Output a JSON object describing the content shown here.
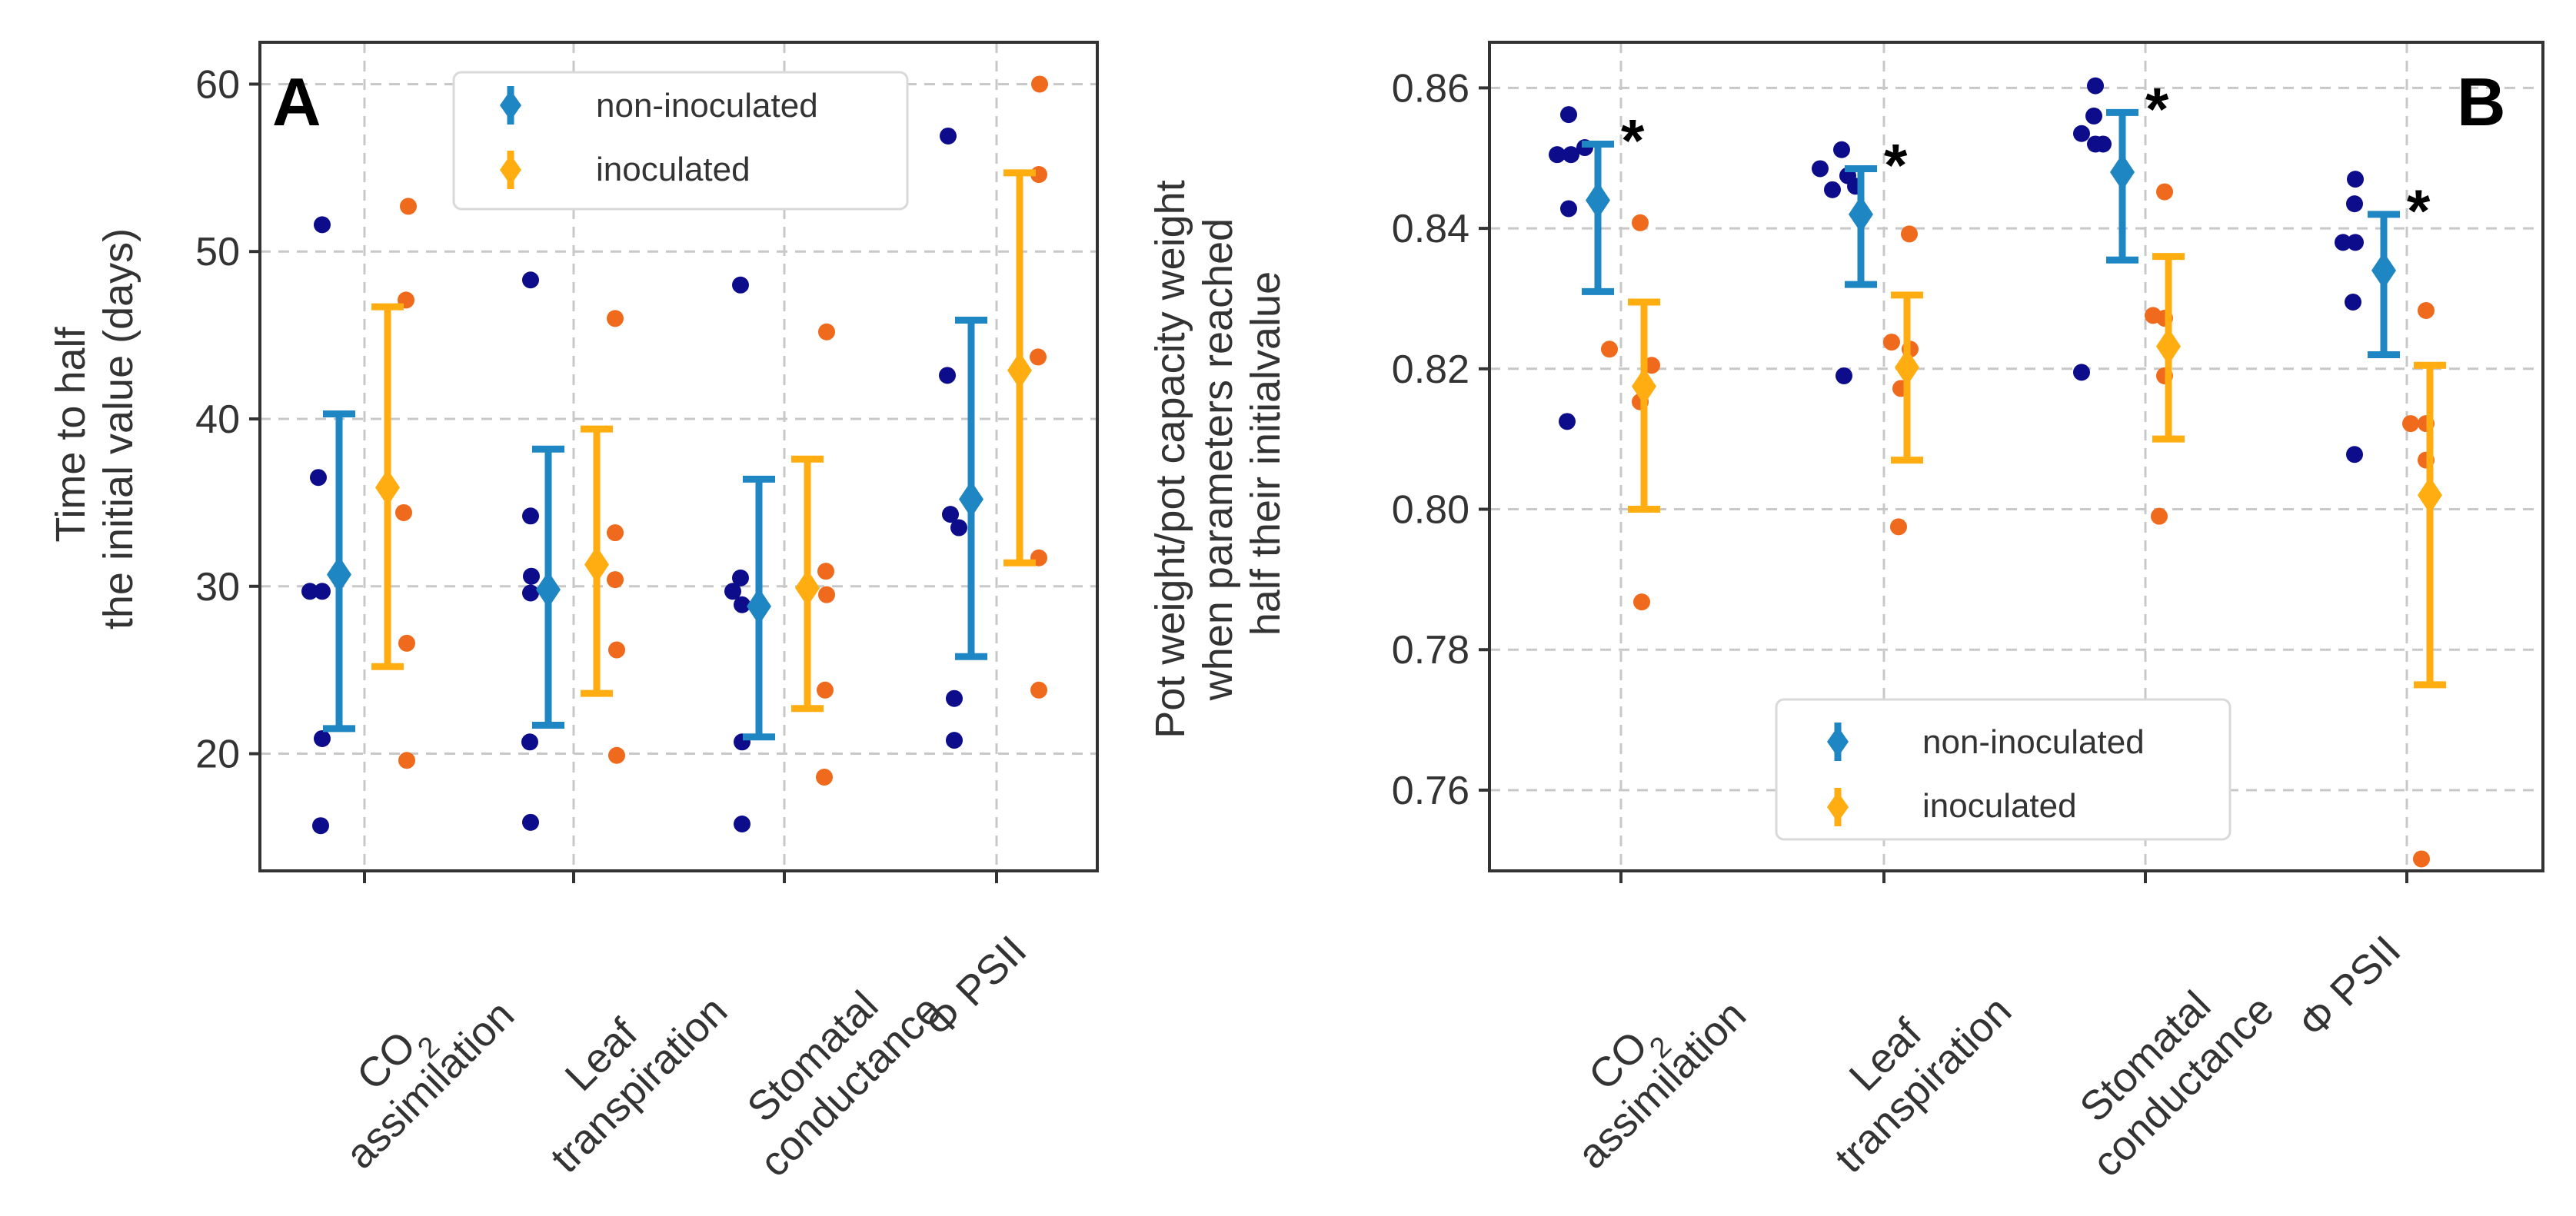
{
  "colors": {
    "non_mean": "#1f86c4",
    "ino_mean": "#ffad10",
    "non_points": "#0d0d8c",
    "ino_points": "#ef6a1c",
    "grid": "#c8c8c8",
    "frame": "#333333"
  },
  "chart_data": [
    {
      "panel": "A",
      "type": "scatter",
      "ylabel_lines": [
        "Time to half",
        "the initial value (days)"
      ],
      "ylim": [
        13,
        62.5
      ],
      "yticks": [
        20,
        30,
        40,
        50,
        60
      ],
      "ytick_labels": [
        "20",
        "30",
        "40",
        "50",
        "60"
      ],
      "categories": [
        {
          "main": "CO",
          "sub": "2",
          "line2": "assimilation"
        },
        {
          "main": "Leaf",
          "sub": "",
          "line2": "transpiration"
        },
        {
          "main": "Stomatal",
          "sub": "",
          "line2": "conductance"
        },
        {
          "main": "Φ PSII",
          "sub": "",
          "line2": ""
        }
      ],
      "legend": {
        "position": "top-center",
        "entries": [
          "non-inoculated",
          "inoculated"
        ]
      },
      "significance": [
        false,
        false,
        false,
        false
      ],
      "series": [
        {
          "name": "non-inoculated",
          "means": [
            30.7,
            29.8,
            28.8,
            35.2
          ],
          "lower": [
            21.5,
            21.7,
            21.0,
            25.8
          ],
          "upper": [
            40.3,
            38.2,
            36.4,
            45.9
          ],
          "points": [
            [
              15.7,
              20.9,
              29.7,
              29.7,
              36.5,
              51.6
            ],
            [
              15.9,
              20.7,
              29.6,
              30.6,
              34.2,
              48.3
            ],
            [
              15.8,
              20.7,
              28.9,
              29.7,
              30.5,
              48.0
            ],
            [
              20.8,
              23.3,
              33.5,
              34.3,
              42.6,
              56.9
            ]
          ]
        },
        {
          "name": "inoculated",
          "means": [
            35.9,
            31.3,
            29.9,
            42.9
          ],
          "lower": [
            25.2,
            23.6,
            22.7,
            31.4
          ],
          "upper": [
            46.7,
            39.4,
            37.6,
            54.7
          ],
          "points": [
            [
              19.6,
              26.6,
              34.4,
              47.1,
              52.7
            ],
            [
              19.9,
              26.2,
              30.4,
              33.2,
              46.0
            ],
            [
              18.6,
              23.8,
              29.5,
              30.9,
              45.2
            ],
            [
              23.8,
              31.7,
              43.7,
              54.6,
              60.0
            ]
          ]
        }
      ]
    },
    {
      "panel": "B",
      "type": "scatter",
      "ylabel_lines": [
        "Pot weight/pot capacity weight",
        "when parameters reached",
        "half their initialvalue"
      ],
      "ylim": [
        0.7485,
        0.8665
      ],
      "yticks": [
        0.76,
        0.78,
        0.8,
        0.82,
        0.84,
        0.86
      ],
      "ytick_labels": [
        "0.76",
        "0.78",
        "0.80",
        "0.82",
        "0.84",
        "0.86"
      ],
      "categories": [
        {
          "main": "CO",
          "sub": "2",
          "line2": "assimilation"
        },
        {
          "main": "Leaf",
          "sub": "",
          "line2": "transpiration"
        },
        {
          "main": "Stomatal",
          "sub": "",
          "line2": "conductance"
        },
        {
          "main": "Φ PSII",
          "sub": "",
          "line2": ""
        }
      ],
      "legend": {
        "position": "bottom-center",
        "entries": [
          "non-inoculated",
          "inoculated"
        ]
      },
      "significance": [
        true,
        true,
        true,
        true
      ],
      "significance_label": "*",
      "series": [
        {
          "name": "non-inoculated",
          "means": [
            0.844,
            0.842,
            0.848,
            0.834
          ],
          "lower": [
            0.831,
            0.832,
            0.8355,
            0.822
          ],
          "upper": [
            0.852,
            0.8485,
            0.8565,
            0.842
          ],
          "points": [
            [
              0.8125,
              0.8428,
              0.8505,
              0.8505,
              0.8515,
              0.8562
            ],
            [
              0.819,
              0.8455,
              0.846,
              0.8475,
              0.8485,
              0.8512
            ],
            [
              0.8195,
              0.852,
              0.852,
              0.8535,
              0.856,
              0.8603
            ],
            [
              0.8078,
              0.8295,
              0.838,
              0.838,
              0.8435,
              0.847
            ]
          ]
        },
        {
          "name": "inoculated",
          "means": [
            0.8175,
            0.8202,
            0.8232,
            0.802
          ],
          "lower": [
            0.8,
            0.807,
            0.81,
            0.775
          ],
          "upper": [
            0.8295,
            0.8305,
            0.836,
            0.8205
          ],
          "points": [
            [
              0.7868,
              0.8153,
              0.8205,
              0.8228,
              0.8408
            ],
            [
              0.7975,
              0.8172,
              0.8228,
              0.8238,
              0.8392
            ],
            [
              0.799,
              0.819,
              0.8272,
              0.8276,
              0.8452
            ],
            [
              0.7502,
              0.807,
              0.8122,
              0.8122,
              0.8283
            ]
          ]
        }
      ]
    }
  ]
}
